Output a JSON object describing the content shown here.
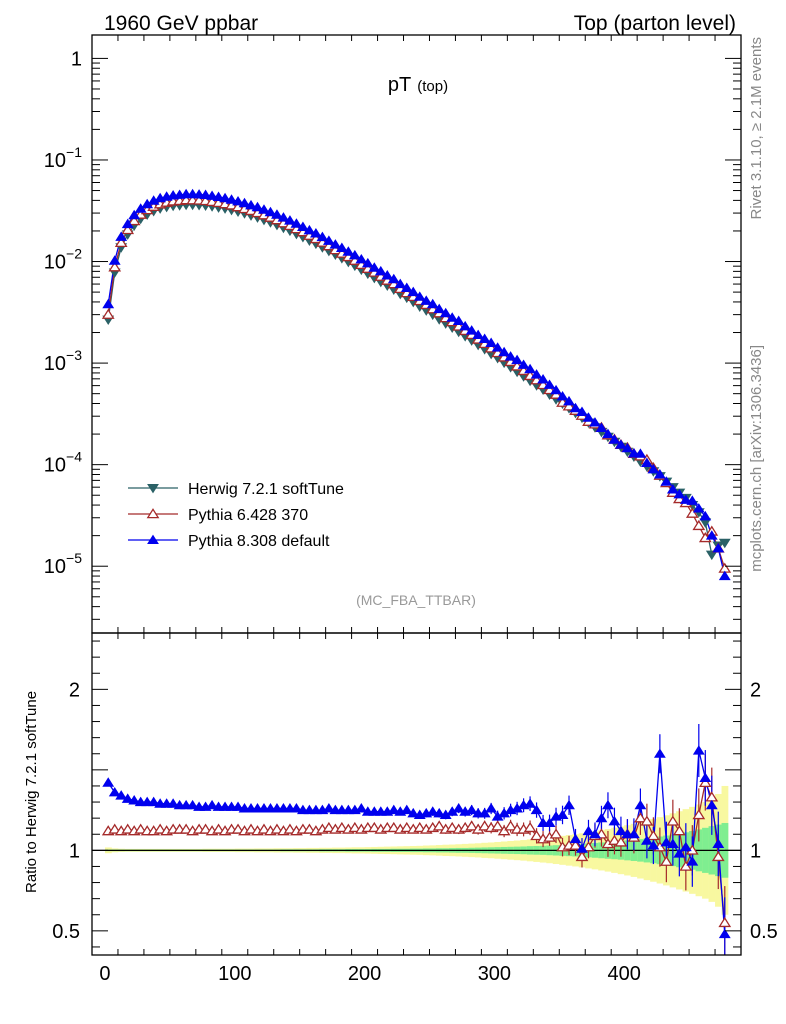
{
  "header": {
    "left": "1960 GeV ppbar",
    "right": "Top (parton level)"
  },
  "side_labels": {
    "rivet": "Rivet 3.1.10, ≥ 2.1M events",
    "mcplots": "mcplots.cern.ch [arXiv:1306.3436]"
  },
  "chart_data": [
    {
      "type": "line",
      "panel": "main",
      "title_main": "pT",
      "title_sub": "(top)",
      "analysis_label": "(MC_FBA_TTBAR)",
      "xlabel": "",
      "ylabel": "",
      "xlim": [
        -10,
        490
      ],
      "ylim": [
        2.2e-06,
        1.7
      ],
      "yscale": "log",
      "x_ticks": [
        0,
        100,
        200,
        300,
        400
      ],
      "y_tick_labels": [
        {
          "base": "1",
          "exp": ""
        },
        {
          "base": "10",
          "exp": "−1"
        },
        {
          "base": "10",
          "exp": "−2"
        },
        {
          "base": "10",
          "exp": "−3"
        },
        {
          "base": "10",
          "exp": "−4"
        },
        {
          "base": "10",
          "exp": "−5"
        }
      ],
      "y_tick_values": [
        1,
        0.1,
        0.01,
        0.001,
        0.0001,
        1e-05
      ],
      "grid": false,
      "legend_position": "bottom-left",
      "x": [
        2.5,
        7.5,
        12.5,
        17.5,
        22.5,
        27.5,
        32.5,
        37.5,
        42.5,
        47.5,
        52.5,
        57.5,
        62.5,
        67.5,
        72.5,
        77.5,
        82.5,
        87.5,
        92.5,
        97.5,
        102.5,
        107.5,
        112.5,
        117.5,
        122.5,
        127.5,
        132.5,
        137.5,
        142.5,
        147.5,
        152.5,
        157.5,
        162.5,
        167.5,
        172.5,
        177.5,
        182.5,
        187.5,
        192.5,
        197.5,
        202.5,
        207.5,
        212.5,
        217.5,
        222.5,
        227.5,
        232.5,
        237.5,
        242.5,
        247.5,
        252.5,
        257.5,
        262.5,
        267.5,
        272.5,
        277.5,
        282.5,
        287.5,
        292.5,
        297.5,
        302.5,
        307.5,
        312.5,
        317.5,
        322.5,
        327.5,
        332.5,
        337.5,
        342.5,
        347.5,
        352.5,
        357.5,
        362.5,
        367.5,
        372.5,
        377.5,
        382.5,
        387.5,
        392.5,
        397.5,
        402.5,
        407.5,
        412.5,
        417.5,
        422.5,
        427.5,
        432.5,
        437.5,
        442.5,
        447.5,
        452.5,
        457.5,
        462.5,
        467.5,
        472.5,
        477.5
      ],
      "series": [
        {
          "name": "Herwig 7.2.1 softTune",
          "color": "#2a6166",
          "marker": "triangle-down-filled",
          "values": [
            0.00268,
            0.0078,
            0.0138,
            0.0185,
            0.0226,
            0.0263,
            0.029,
            0.0314,
            0.0333,
            0.0345,
            0.0354,
            0.0358,
            0.0362,
            0.0362,
            0.036,
            0.0356,
            0.035,
            0.0341,
            0.0333,
            0.0322,
            0.031,
            0.0298,
            0.0284,
            0.0272,
            0.0257,
            0.0243,
            0.0229,
            0.0215,
            0.0201,
            0.0187,
            0.0174,
            0.0161,
            0.015,
            0.0138,
            0.0127,
            0.0117,
            0.0108,
            0.0099,
            0.0091,
            0.0083,
            0.0076,
            0.0069,
            0.0063,
            0.0058,
            0.0053,
            0.0048,
            0.0044,
            0.004,
            0.0036,
            0.0033,
            0.003,
            0.0027,
            0.00246,
            0.00224,
            0.00203,
            0.00184,
            0.00167,
            0.00151,
            0.00137,
            0.00123,
            0.00112,
            0.00101,
            0.00091,
            0.00082,
            0.00074,
            0.00067,
            0.000605,
            0.000548,
            0.00049,
            0.00044,
            0.0004,
            0.00036,
            0.000323,
            0.00029,
            0.00026,
            0.000233,
            0.00021,
            0.000188,
            0.000168,
            0.00015,
            0.000134,
            0.00012,
            0.000107,
            9.6e-05,
            8.6e-05,
            7.7e-05,
            6.8e-05,
            6e-05,
            5.3e-05,
            4.7e-05,
            4e-05,
            3.4e-05,
            2.7e-05,
            1.3e-05,
            1.6e-05,
            1.7e-05
          ]
        },
        {
          "name": "Pythia 6.428 370",
          "color": "#a52a2a",
          "marker": "triangle-up-open",
          "values": [
            0.003,
            0.0088,
            0.0153,
            0.0205,
            0.0251,
            0.029,
            0.0322,
            0.0347,
            0.0367,
            0.0381,
            0.0392,
            0.0397,
            0.0403,
            0.0402,
            0.04,
            0.0396,
            0.0388,
            0.0379,
            0.0368,
            0.0358,
            0.0344,
            0.033,
            0.0316,
            0.0301,
            0.0286,
            0.0271,
            0.0256,
            0.0239,
            0.0225,
            0.0209,
            0.0195,
            0.018,
            0.0167,
            0.0154,
            0.0142,
            0.013,
            0.012,
            0.0111,
            0.0102,
            0.0093,
            0.0085,
            0.0078,
            0.0071,
            0.0065,
            0.006,
            0.0054,
            0.0049,
            0.0045,
            0.0041,
            0.00375,
            0.0034,
            0.0031,
            0.00278,
            0.00254,
            0.0023,
            0.00208,
            0.0019,
            0.00171,
            0.00155,
            0.0014,
            0.00126,
            0.00114,
            0.00103,
            0.00093,
            0.00084,
            0.00075,
            0.00068,
            0.00061,
            0.000545,
            0.00049,
            0.000408,
            0.000376,
            0.00034,
            0.000304,
            0.000265,
            0.00025,
            0.000232,
            0.000195,
            0.000177,
            0.000157,
            0.000147,
            0.000128,
            0.000121,
            0.000112,
            9.3e-05,
            7.8e-05,
            6.6e-05,
            5.3e-05,
            4.6e-05,
            4.2e-05,
            3.3e-05,
            2.5e-05,
            1.9e-05,
            2.2e-05,
            1.5e-05,
            9.5e-06
          ]
        },
        {
          "name": "Pythia 8.308 default",
          "color": "#0000ee",
          "marker": "triangle-up-filled",
          "values": [
            0.0038,
            0.0102,
            0.0175,
            0.0234,
            0.0286,
            0.0331,
            0.0367,
            0.0397,
            0.042,
            0.0435,
            0.0447,
            0.0453,
            0.046,
            0.046,
            0.0457,
            0.0452,
            0.0443,
            0.0432,
            0.042,
            0.0406,
            0.0391,
            0.0375,
            0.0358,
            0.0343,
            0.0324,
            0.0306,
            0.0289,
            0.0271,
            0.0253,
            0.0236,
            0.0219,
            0.0203,
            0.0189,
            0.0174,
            0.016,
            0.0147,
            0.0136,
            0.0125,
            0.0115,
            0.0105,
            0.0096,
            0.0087,
            0.008,
            0.0073,
            0.0067,
            0.006,
            0.0055,
            0.005,
            0.0045,
            0.0041,
            0.0038,
            0.0034,
            0.0031,
            0.0028,
            0.0026,
            0.0023,
            0.00209,
            0.00189,
            0.00173,
            0.00158,
            0.00142,
            0.00128,
            0.00116,
            0.00107,
            0.00096,
            0.00087,
            0.00077,
            0.00069,
            0.00061,
            0.00054,
            0.00047,
            0.00042,
            0.00036,
            0.00033,
            0.00029,
            0.00026,
            0.00023,
            0.0002,
            0.000176,
            0.000157,
            0.000145,
            0.000129,
            0.000128,
            0.000104,
            9e-05,
            8e-05,
            6.8e-05,
            5.7e-05,
            5.1e-05,
            4.5e-05,
            4.4e-05,
            3.7e-05,
            3.1e-05,
            2e-05,
            1.5e-05,
            8e-06
          ]
        }
      ]
    },
    {
      "type": "line",
      "panel": "ratio",
      "xlabel": "",
      "ylabel": "Ratio to Herwig 7.2.1 softTune",
      "xlim": [
        -10,
        490
      ],
      "ylim": [
        0.35,
        2.35
      ],
      "x_ticks": [
        0,
        100,
        200,
        300,
        400
      ],
      "y_ticks": [
        0.5,
        1,
        2
      ],
      "reference_line": 1,
      "band_colors": {
        "inner": "#7fee90",
        "outer": "#f8f8a0"
      },
      "x": [
        2.5,
        7.5,
        12.5,
        17.5,
        22.5,
        27.5,
        32.5,
        37.5,
        42.5,
        47.5,
        52.5,
        57.5,
        62.5,
        67.5,
        72.5,
        77.5,
        82.5,
        87.5,
        92.5,
        97.5,
        102.5,
        107.5,
        112.5,
        117.5,
        122.5,
        127.5,
        132.5,
        137.5,
        142.5,
        147.5,
        152.5,
        157.5,
        162.5,
        167.5,
        172.5,
        177.5,
        182.5,
        187.5,
        192.5,
        197.5,
        202.5,
        207.5,
        212.5,
        217.5,
        222.5,
        227.5,
        232.5,
        237.5,
        242.5,
        247.5,
        252.5,
        257.5,
        262.5,
        267.5,
        272.5,
        277.5,
        282.5,
        287.5,
        292.5,
        297.5,
        302.5,
        307.5,
        312.5,
        317.5,
        322.5,
        327.5,
        332.5,
        337.5,
        342.5,
        347.5,
        352.5,
        357.5,
        362.5,
        367.5,
        372.5,
        377.5,
        382.5,
        387.5,
        392.5,
        397.5,
        402.5,
        407.5,
        412.5,
        417.5,
        422.5,
        427.5,
        432.5,
        437.5,
        442.5,
        447.5,
        452.5,
        457.5,
        462.5,
        467.5,
        472.5,
        477.5
      ],
      "band_inner_halfwidth": [
        0.005,
        0.005,
        0.005,
        0.005,
        0.005,
        0.005,
        0.005,
        0.005,
        0.005,
        0.005,
        0.005,
        0.005,
        0.005,
        0.005,
        0.005,
        0.005,
        0.005,
        0.005,
        0.005,
        0.005,
        0.005,
        0.005,
        0.005,
        0.005,
        0.005,
        0.005,
        0.005,
        0.006,
        0.006,
        0.006,
        0.006,
        0.006,
        0.006,
        0.007,
        0.007,
        0.007,
        0.007,
        0.008,
        0.008,
        0.008,
        0.008,
        0.009,
        0.009,
        0.009,
        0.01,
        0.01,
        0.01,
        0.011,
        0.011,
        0.012,
        0.012,
        0.013,
        0.013,
        0.014,
        0.015,
        0.015,
        0.016,
        0.017,
        0.018,
        0.019,
        0.02,
        0.021,
        0.022,
        0.023,
        0.024,
        0.026,
        0.027,
        0.028,
        0.03,
        0.032,
        0.034,
        0.036,
        0.038,
        0.04,
        0.043,
        0.046,
        0.049,
        0.052,
        0.055,
        0.058,
        0.062,
        0.066,
        0.07,
        0.075,
        0.08,
        0.086,
        0.092,
        0.098,
        0.105,
        0.112,
        0.12,
        0.13,
        0.14,
        0.15,
        0.16,
        0.17
      ],
      "band_outer_halfwidth": [
        0.018,
        0.012,
        0.01,
        0.009,
        0.009,
        0.009,
        0.009,
        0.009,
        0.009,
        0.009,
        0.009,
        0.009,
        0.009,
        0.009,
        0.009,
        0.01,
        0.01,
        0.01,
        0.01,
        0.01,
        0.011,
        0.011,
        0.011,
        0.012,
        0.012,
        0.012,
        0.013,
        0.013,
        0.013,
        0.014,
        0.014,
        0.015,
        0.015,
        0.016,
        0.016,
        0.017,
        0.017,
        0.018,
        0.019,
        0.019,
        0.02,
        0.021,
        0.022,
        0.023,
        0.024,
        0.025,
        0.026,
        0.027,
        0.028,
        0.03,
        0.031,
        0.033,
        0.035,
        0.036,
        0.038,
        0.04,
        0.042,
        0.044,
        0.047,
        0.049,
        0.052,
        0.055,
        0.058,
        0.061,
        0.064,
        0.068,
        0.072,
        0.076,
        0.08,
        0.085,
        0.09,
        0.095,
        0.1,
        0.106,
        0.112,
        0.118,
        0.125,
        0.132,
        0.14,
        0.148,
        0.156,
        0.165,
        0.175,
        0.185,
        0.195,
        0.206,
        0.218,
        0.23,
        0.243,
        0.256,
        0.27,
        0.285,
        0.3,
        0.32,
        0.35,
        0.4
      ],
      "series": [
        {
          "name": "Pythia 6.428 370",
          "color": "#a52a2a",
          "marker": "triangle-up-open",
          "values": [
            1.12,
            1.13,
            1.12,
            1.13,
            1.12,
            1.13,
            1.12,
            1.12,
            1.13,
            1.12,
            1.13,
            1.13,
            1.13,
            1.12,
            1.13,
            1.13,
            1.12,
            1.13,
            1.12,
            1.13,
            1.13,
            1.12,
            1.13,
            1.12,
            1.13,
            1.12,
            1.13,
            1.12,
            1.13,
            1.12,
            1.13,
            1.13,
            1.12,
            1.13,
            1.14,
            1.13,
            1.14,
            1.13,
            1.14,
            1.13,
            1.14,
            1.14,
            1.13,
            1.14,
            1.14,
            1.13,
            1.14,
            1.13,
            1.14,
            1.13,
            1.14,
            1.15,
            1.13,
            1.14,
            1.13,
            1.14,
            1.15,
            1.13,
            1.15,
            1.14,
            1.15,
            1.12,
            1.15,
            1.13,
            1.13,
            1.14,
            1.09,
            1.07,
            1.08,
            1.1,
            1.02,
            1.03,
            1.03,
            0.96,
            1.02,
            1.09,
            1.1,
            1.04,
            1.06,
            1.05,
            1.1,
            1.08,
            1.2,
            1.18,
            1.09,
            1.02,
            0.93,
            1.18,
            1.12,
            0.9,
            1.0,
            1.22,
            1.42,
            1.33,
            0.96,
            0.55
          ]
        },
        {
          "name": "Pythia 8.308 default",
          "color": "#0000ee",
          "marker": "triangle-up-filled",
          "values": [
            1.42,
            1.36,
            1.34,
            1.32,
            1.31,
            1.3,
            1.3,
            1.3,
            1.29,
            1.29,
            1.29,
            1.28,
            1.28,
            1.28,
            1.27,
            1.27,
            1.28,
            1.27,
            1.27,
            1.27,
            1.27,
            1.26,
            1.26,
            1.26,
            1.26,
            1.26,
            1.26,
            1.26,
            1.26,
            1.26,
            1.25,
            1.25,
            1.25,
            1.25,
            1.26,
            1.25,
            1.25,
            1.25,
            1.25,
            1.26,
            1.24,
            1.24,
            1.24,
            1.24,
            1.25,
            1.24,
            1.25,
            1.23,
            1.22,
            1.23,
            1.24,
            1.23,
            1.22,
            1.24,
            1.26,
            1.24,
            1.25,
            1.23,
            1.23,
            1.26,
            1.21,
            1.23,
            1.25,
            1.26,
            1.28,
            1.29,
            1.25,
            1.17,
            1.17,
            1.21,
            1.22,
            1.28,
            1.07,
            1.01,
            1.12,
            1.1,
            1.2,
            1.28,
            1.18,
            1.12,
            1.1,
            1.1,
            1.28,
            1.06,
            1.03,
            1.6,
            1.05,
            1.04,
            0.98,
            1.02,
            0.93,
            1.62,
            1.45,
            1.28,
            1.04,
            0.48
          ]
        }
      ]
    }
  ]
}
